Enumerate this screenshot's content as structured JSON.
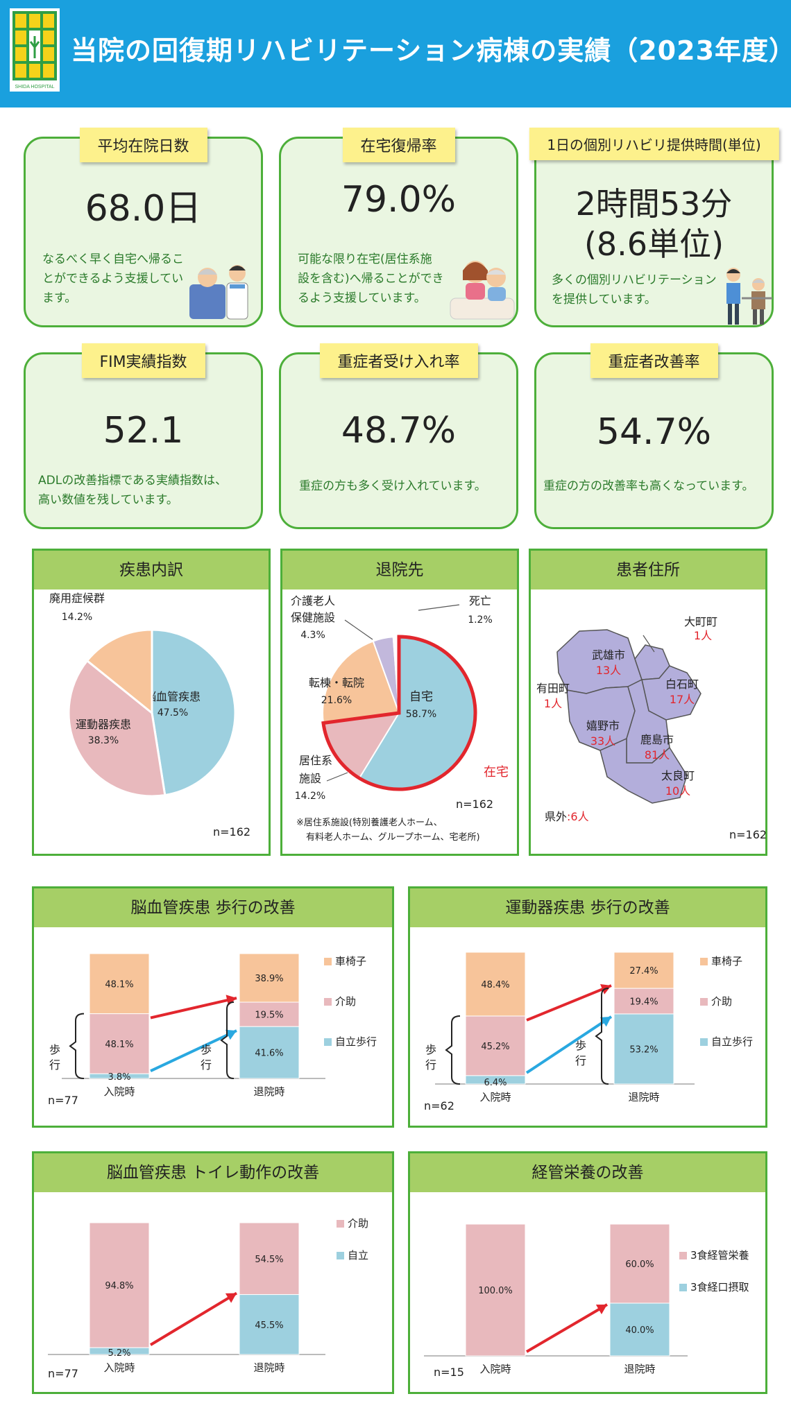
{
  "header": {
    "title": "当院の回復期リハビリテーション病棟の実績（2023年度）",
    "logo_text": "SHIDA HOSPITAL"
  },
  "stats": [
    {
      "label": "平均在院日数",
      "value": "68.0日",
      "desc": [
        "なるべく早く自宅へ帰るこ",
        "とができるよう支援してい",
        "ます。"
      ]
    },
    {
      "label": "在宅復帰率",
      "value": "79.0%",
      "desc": [
        "可能な限り在宅(居住系施",
        "設を含む)へ帰ることができ",
        "るよう支援しています。"
      ]
    },
    {
      "label": "1日の個別リハビリ提供時間(単位)",
      "value": "2時間53分",
      "value2": "(8.6単位)",
      "desc": [
        "多くの個別リハビリテーション",
        "を提供しています。"
      ]
    },
    {
      "label": "FIM実績指数",
      "value": "52.1",
      "desc": [
        "ADLの改善指標である実績指数は、",
        "高い数値を残しています。"
      ]
    },
    {
      "label": "重症者受け入れ率",
      "value": "48.7%",
      "desc": [
        "重症の方も多く受け入れています。"
      ]
    },
    {
      "label": "重症者改善率",
      "value": "54.7%",
      "desc": [
        "重症の方の改善率も高くなっています。"
      ]
    }
  ],
  "panels": {
    "disease": {
      "title": "疾患内訳",
      "n": "n=162"
    },
    "discharge": {
      "title": "退院先",
      "n": "n=162",
      "zaitaku": "在宅",
      "note1": "※居住系施設(特別養護老人ホーム、",
      "note2": "有料老人ホーム、グループホーム、宅老所)"
    },
    "address": {
      "title": "患者住所",
      "n": "n=162",
      "outside_label": "県外",
      "outside_value": ":6人"
    },
    "walk_cvd": {
      "title": "脳血管疾患 歩行の改善",
      "n": "n=77",
      "walk_label": "歩行"
    },
    "walk_ortho": {
      "title": "運動器疾患 歩行の改善",
      "n": "n=62",
      "walk_label": "歩行"
    },
    "toilet": {
      "title": "脳血管疾患 トイレ動作の改善",
      "n": "n=77"
    },
    "tube": {
      "title": "経管栄養の改善",
      "n": "n=15"
    }
  },
  "map": {
    "towns": [
      {
        "name": "大町町",
        "count": "1人"
      },
      {
        "name": "武雄市",
        "count": "13人"
      },
      {
        "name": "有田町",
        "count": "1人"
      },
      {
        "name": "白石町",
        "count": "17人"
      },
      {
        "name": "嬉野市",
        "count": "33人"
      },
      {
        "name": "鹿島市",
        "count": "81人"
      },
      {
        "name": "太良町",
        "count": "10人"
      }
    ]
  },
  "colors": {
    "header": "#1aa0de",
    "green_border": "#4daf3a",
    "card_bg": "#eaf6e1",
    "tag": "#fdf18c",
    "panel_head": "#a6cf66",
    "blue": "#9dd0df",
    "pink": "#e8b9bd",
    "orange": "#f7c49a",
    "purple": "#c2b8dc",
    "red": "#e2262d",
    "arrow_blue": "#29a8e0",
    "map": "#b3aedb"
  },
  "chart_data": [
    {
      "type": "pie",
      "title": "疾患内訳",
      "slices": [
        {
          "label": "脳血管疾患",
          "value": 47.5,
          "value_label": "47.5%",
          "color": "#9dd0df"
        },
        {
          "label": "運動器疾患",
          "value": 38.3,
          "value_label": "38.3%",
          "color": "#e8b9bd"
        },
        {
          "label": "廃用症候群",
          "value": 14.2,
          "value_label": "14.2%",
          "color": "#f7c49a"
        }
      ]
    },
    {
      "type": "pie",
      "title": "退院先",
      "slices": [
        {
          "label": "自宅",
          "value": 58.7,
          "value_label": "58.7%",
          "color": "#9dd0df"
        },
        {
          "label": "居住系施設",
          "label_lines": [
            "居住系",
            "施設"
          ],
          "value": 14.2,
          "value_label": "14.2%",
          "color": "#e8b9bd"
        },
        {
          "label": "転棟・転院",
          "value": 21.6,
          "value_label": "21.6%",
          "color": "#f7c49a"
        },
        {
          "label": "介護老人保健施設",
          "label_lines": [
            "介護老人",
            "保健施設"
          ],
          "value": 4.3,
          "value_label": "4.3%",
          "color": "#c2b8dc"
        },
        {
          "label": "死亡",
          "value": 1.2,
          "value_label": "1.2%",
          "color": "#ffffff"
        }
      ]
    },
    {
      "type": "bar",
      "stacked": true,
      "title": "脳血管疾患 歩行の改善",
      "categories": [
        "入院時",
        "退院時"
      ],
      "series": [
        {
          "name": "自立歩行",
          "values": [
            3.8,
            41.6
          ],
          "labels": [
            "3.8%",
            "41.6%"
          ],
          "color": "#9dd0df"
        },
        {
          "name": "介助",
          "values": [
            48.1,
            19.5
          ],
          "labels": [
            "48.1%",
            "19.5%"
          ],
          "color": "#e8b9bd"
        },
        {
          "name": "車椅子",
          "values": [
            48.1,
            38.9
          ],
          "labels": [
            "48.1%",
            "38.9%"
          ],
          "color": "#f7c49a"
        }
      ]
    },
    {
      "type": "bar",
      "stacked": true,
      "title": "運動器疾患 歩行の改善",
      "categories": [
        "入院時",
        "退院時"
      ],
      "series": [
        {
          "name": "自立歩行",
          "values": [
            6.4,
            53.2
          ],
          "labels": [
            "6.4%",
            "53.2%"
          ],
          "color": "#9dd0df"
        },
        {
          "name": "介助",
          "values": [
            45.2,
            19.4
          ],
          "labels": [
            "45.2%",
            "19.4%"
          ],
          "color": "#e8b9bd"
        },
        {
          "name": "車椅子",
          "values": [
            48.4,
            27.4
          ],
          "labels": [
            "48.4%",
            "27.4%"
          ],
          "color": "#f7c49a"
        }
      ]
    },
    {
      "type": "bar",
      "stacked": true,
      "title": "脳血管疾患 トイレ動作の改善",
      "categories": [
        "入院時",
        "退院時"
      ],
      "series": [
        {
          "name": "自立",
          "values": [
            5.2,
            45.5
          ],
          "labels": [
            "5.2%",
            "45.5%"
          ],
          "color": "#9dd0df"
        },
        {
          "name": "介助",
          "values": [
            94.8,
            54.5
          ],
          "labels": [
            "94.8%",
            "54.5%"
          ],
          "color": "#e8b9bd"
        }
      ]
    },
    {
      "type": "bar",
      "stacked": true,
      "title": "経管栄養の改善",
      "categories": [
        "入院時",
        "退院時"
      ],
      "series": [
        {
          "name": "3食経口摂取",
          "values": [
            0,
            40.0
          ],
          "labels": [
            "",
            "40.0%"
          ],
          "color": "#9dd0df"
        },
        {
          "name": "3食経管栄養",
          "values": [
            100.0,
            60.0
          ],
          "labels": [
            "100.0%",
            "60.0%"
          ],
          "color": "#e8b9bd"
        }
      ]
    }
  ]
}
